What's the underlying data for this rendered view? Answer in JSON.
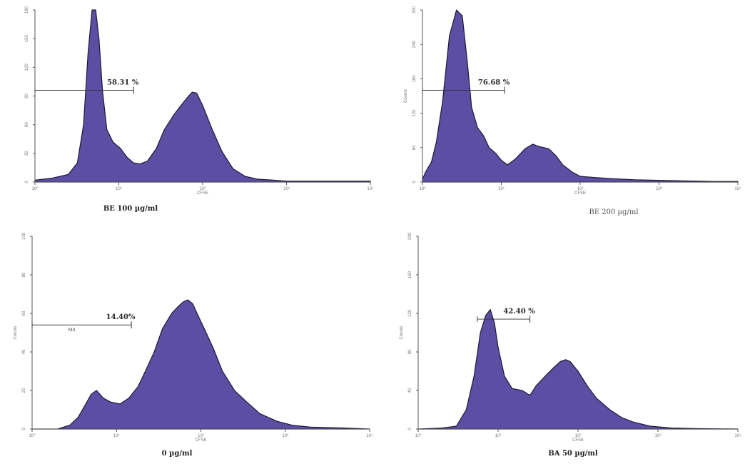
{
  "chart_data": [
    {
      "type": "area",
      "title": "",
      "caption": "BE 100 µg/ml",
      "xlabel": "CFSE",
      "ylabel": "",
      "x_scale": "log",
      "xlim": [
        1,
        10000
      ],
      "ylim": [
        0,
        180
      ],
      "x_ticks": [
        "10⁰",
        "10¹",
        "10²",
        "10³",
        "10⁴"
      ],
      "y_ticks": [
        "0",
        "30",
        "60",
        "90",
        "120",
        "150",
        "180"
      ],
      "gate": {
        "label": "58.31 %",
        "range": [
          1,
          15
        ],
        "y": 96,
        "tag": ""
      },
      "histogram": {
        "x": [
          1,
          1.6,
          2.5,
          3.2,
          3.8,
          4.3,
          4.8,
          5.3,
          5.8,
          6.4,
          7.2,
          8.5,
          10.5,
          12.5,
          15,
          18,
          22,
          28,
          35,
          45,
          55,
          65,
          75,
          85,
          100,
          130,
          170,
          230,
          320,
          450,
          700,
          1000,
          2000,
          5000,
          10000
        ],
        "y": [
          2,
          4,
          8,
          20,
          60,
          135,
          185,
          185,
          150,
          95,
          55,
          42,
          35,
          26,
          20,
          19,
          22,
          35,
          55,
          70,
          80,
          88,
          94,
          93,
          80,
          55,
          32,
          14,
          6,
          3,
          2,
          1,
          1,
          1,
          1
        ]
      }
    },
    {
      "type": "area",
      "title": "",
      "caption": "BE 200 µg/ml",
      "xlabel": "CFSE",
      "ylabel": "Counts",
      "x_scale": "log",
      "xlim": [
        1,
        10000
      ],
      "ylim": [
        0,
        300
      ],
      "x_ticks": [
        "10⁰",
        "10¹",
        "10²",
        "10³",
        "10⁴"
      ],
      "y_ticks": [
        "0",
        "60",
        "120",
        "180",
        "240",
        "300"
      ],
      "gate": {
        "label": "76.68 %",
        "range": [
          1,
          11
        ],
        "y": 160,
        "tag": ""
      },
      "histogram": {
        "x": [
          1,
          1.1,
          1.3,
          1.5,
          1.8,
          2.2,
          2.7,
          3.2,
          3.7,
          4.2,
          5,
          6,
          7,
          8.5,
          10,
          12,
          15,
          20,
          25,
          30,
          40,
          50,
          60,
          80,
          100,
          150,
          250,
          500,
          1000,
          2000,
          5000,
          10000
        ],
        "y": [
          5,
          18,
          35,
          70,
          140,
          255,
          305,
          290,
          210,
          130,
          95,
          80,
          60,
          50,
          38,
          30,
          40,
          58,
          66,
          62,
          58,
          45,
          30,
          17,
          10,
          8,
          6,
          4,
          3,
          2,
          1,
          1
        ]
      }
    },
    {
      "type": "area",
      "title": "",
      "caption": "0 µg/ml",
      "xlabel": "CFSE",
      "ylabel": "Counts",
      "x_scale": "log",
      "xlim": [
        1,
        10000
      ],
      "ylim": [
        0,
        100
      ],
      "x_ticks": [
        "10⁰",
        "10¹",
        "10²",
        "10³",
        "10⁴"
      ],
      "y_ticks": [
        "0",
        "20",
        "40",
        "60",
        "80",
        "100"
      ],
      "gate": {
        "label": "14.40%",
        "range": [
          1,
          15
        ],
        "y": 54,
        "tag": "M4"
      },
      "histogram": {
        "x": [
          1,
          2,
          2.8,
          3.5,
          4.2,
          5,
          5.8,
          7,
          8.5,
          11,
          14,
          18,
          22,
          28,
          35,
          45,
          55,
          62,
          70,
          80,
          90,
          110,
          140,
          180,
          250,
          350,
          500,
          800,
          1200,
          2000,
          5000,
          10000
        ],
        "y": [
          0,
          0,
          2,
          6,
          12,
          18,
          20,
          16,
          14,
          13,
          16,
          22,
          30,
          40,
          52,
          60,
          64,
          66,
          67,
          65,
          60,
          52,
          42,
          30,
          20,
          14,
          8,
          4,
          2,
          1,
          0.5,
          0
        ]
      }
    },
    {
      "type": "area",
      "title": "",
      "caption": "BA 50 µg/ml",
      "xlabel": "CFSE",
      "ylabel": "Counts",
      "x_scale": "log",
      "xlim": [
        1,
        10000
      ],
      "ylim": [
        0,
        200
      ],
      "x_ticks": [
        "10⁰",
        "10¹",
        "10²",
        "10³",
        "10⁴"
      ],
      "y_ticks": [
        "0",
        "40",
        "80",
        "120",
        "160",
        "200"
      ],
      "gate": {
        "label": "42.40 %",
        "range": [
          5.5,
          25
        ],
        "y": 114,
        "tag": ""
      },
      "histogram": {
        "x": [
          1,
          2,
          3,
          4,
          5,
          6,
          7,
          8,
          9,
          10,
          12,
          15,
          20,
          25,
          30,
          40,
          50,
          60,
          70,
          80,
          100,
          130,
          170,
          250,
          350,
          500,
          800,
          1500,
          3000,
          10000
        ],
        "y": [
          0,
          1,
          3,
          20,
          55,
          100,
          118,
          124,
          110,
          85,
          55,
          42,
          40,
          35,
          45,
          56,
          64,
          70,
          72,
          70,
          60,
          45,
          32,
          20,
          12,
          7,
          3,
          1,
          0.5,
          0
        ]
      }
    }
  ]
}
